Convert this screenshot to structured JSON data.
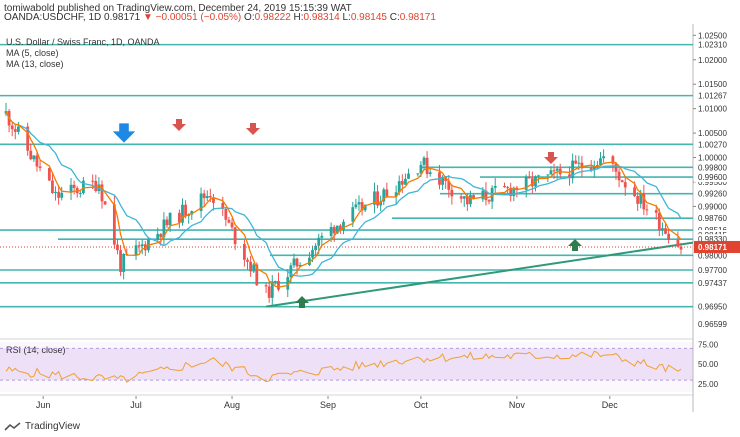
{
  "header": {
    "publisher": "tomiwabold published on TradingView.com, December 24, 2019 15:15:39 WAT",
    "symbol": "OANDA:USDCHF, 1D",
    "last": "0.98171",
    "change": "▼ −0.00051 (−0.05%)",
    "o_label": "O:",
    "o_value": "0.98222",
    "h_label": "H:",
    "h_value": "0.98314",
    "l_label": "L:",
    "l_value": "0.98145",
    "c_label": "C:",
    "c_value": "0.98171"
  },
  "legend": {
    "title": "U.S. Dollar / Swiss Franc, 1D, OANDA",
    "ma5": "MA (5, close)",
    "ma13": "MA (13, close)",
    "rsi": "RSI (14, close)"
  },
  "footer": {
    "brand": "TradingView"
  },
  "colors": {
    "up": "#26a69a",
    "down": "#ef5350",
    "level": "#45b5b0",
    "ma5": "#f57c00",
    "ma13": "#3fb6d8",
    "trend": "#2e9a7a",
    "price_tag": "#e0432f",
    "rsi": "#f0a030",
    "rsi_band": "#ede0f7",
    "arrow_down": "#d9534f",
    "arrow_up": "#2e7d4f",
    "arrow_blue": "#1e88e5"
  },
  "chart_data": [
    {
      "type": "candlestick",
      "title": "U.S. Dollar / Swiss Franc, 1D, OANDA",
      "x_ticks": [
        "Jun",
        "Jul",
        "Aug",
        "Sep",
        "Oct",
        "Nov",
        "Dec"
      ],
      "y_ticks": [
        "1.02500",
        "1.02000",
        "1.01500",
        "1.01000",
        "1.00500",
        "1.00000",
        "0.99500",
        "0.99000"
      ],
      "ylim": [
        0.9635,
        1.0265
      ],
      "level_labels": [
        {
          "value": 1.0231,
          "text": "1.02310"
        },
        {
          "value": 1.01267,
          "text": "1.01267"
        },
        {
          "value": 1.0027,
          "text": "1.00270"
        },
        {
          "value": 0.998,
          "text": "0.99800"
        },
        {
          "value": 0.996,
          "text": "0.99600"
        },
        {
          "value": 0.9926,
          "text": "0.99260"
        },
        {
          "value": 0.9876,
          "text": "0.98760"
        },
        {
          "value": 0.98516,
          "text": "0.98516"
        },
        {
          "value": 0.98415,
          "text": "0.98415"
        },
        {
          "value": 0.9833,
          "text": "0.98330"
        },
        {
          "value": 0.98,
          "text": "0.98000"
        },
        {
          "value": 0.977,
          "text": "0.97700"
        },
        {
          "value": 0.97437,
          "text": "0.97437"
        },
        {
          "value": 0.9695,
          "text": "0.96950"
        },
        {
          "value": 0.96599,
          "text": "0.96599"
        }
      ],
      "last_price": {
        "value": 0.98171,
        "text": "0.98171"
      },
      "ohlc_keypoints": [
        {
          "date": "2019-05-20",
          "close": 1.009
        },
        {
          "date": "2019-06-05",
          "close": 0.992
        },
        {
          "date": "2019-06-19",
          "close": 0.995
        },
        {
          "date": "2019-06-26",
          "close": 0.978
        },
        {
          "date": "2019-07-12",
          "close": 0.987
        },
        {
          "date": "2019-07-25",
          "close": 0.993
        },
        {
          "date": "2019-08-12",
          "close": 0.972
        },
        {
          "date": "2019-09-03",
          "close": 0.986
        },
        {
          "date": "2019-09-20",
          "close": 0.993
        },
        {
          "date": "2019-10-01",
          "close": 0.999
        },
        {
          "date": "2019-10-16",
          "close": 0.991
        },
        {
          "date": "2019-11-12",
          "close": 0.996
        },
        {
          "date": "2019-11-29",
          "close": 1.0
        },
        {
          "date": "2019-12-24",
          "close": 0.98171
        }
      ],
      "series": [
        {
          "name": "MA (5, close)"
        },
        {
          "name": "MA (13, close)"
        }
      ]
    },
    {
      "type": "line",
      "title": "RSI (14, close)",
      "y_ticks": [
        "75.00",
        "50.00",
        "25.00"
      ],
      "ylim": [
        15,
        78
      ],
      "keypoints": [
        {
          "date": "2019-05-20",
          "value": 42
        },
        {
          "date": "2019-06-26",
          "value": 30
        },
        {
          "date": "2019-07-25",
          "value": 55
        },
        {
          "date": "2019-08-12",
          "value": 33
        },
        {
          "date": "2019-10-01",
          "value": 58
        },
        {
          "date": "2019-11-29",
          "value": 62
        },
        {
          "date": "2019-12-24",
          "value": 40
        }
      ],
      "series": [
        {
          "name": "RSI (14, close)"
        }
      ]
    }
  ]
}
